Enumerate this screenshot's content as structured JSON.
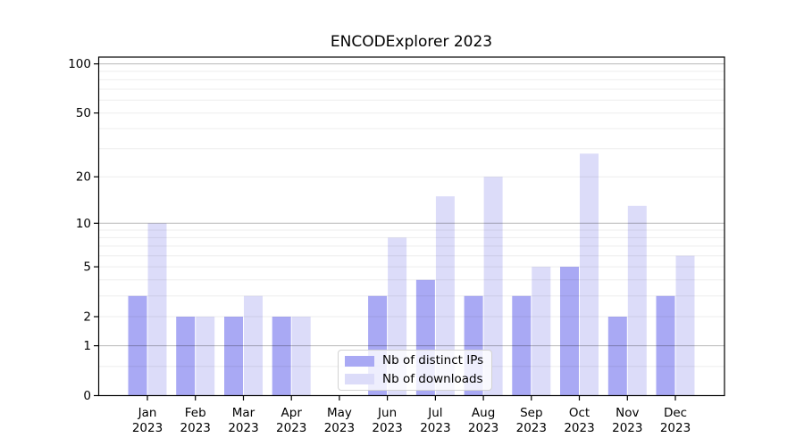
{
  "figure": {
    "title": "ENCODExplorer 2023",
    "background": "#ffffff"
  },
  "chart_data": {
    "type": "bar",
    "title": "ENCODExplorer 2023",
    "categories": [
      "Jan 2023",
      "Feb 2023",
      "Mar 2023",
      "Apr 2023",
      "May 2023",
      "Jun 2023",
      "Jul 2023",
      "Aug 2023",
      "Sep 2023",
      "Oct 2023",
      "Nov 2023",
      "Dec 2023"
    ],
    "series": [
      {
        "name": "Nb of distinct IPs",
        "color": "#a9a9f4",
        "values": [
          3,
          2,
          2,
          2,
          0,
          3,
          4,
          3,
          3,
          5,
          2,
          3
        ]
      },
      {
        "name": "Nb of downloads",
        "color": "#dcdcf9",
        "values": [
          10,
          2,
          3,
          2,
          0,
          8,
          15,
          20,
          5,
          28,
          13,
          6
        ]
      }
    ],
    "yscale": "log1p",
    "ylabel": "",
    "xlabel": "",
    "ylim": [
      0,
      110
    ],
    "yticks": [
      0,
      1,
      2,
      5,
      10,
      20,
      50,
      100
    ],
    "major_gridlines": [
      1,
      10,
      100
    ],
    "minor_gridlines": [
      0.5,
      2,
      3,
      4,
      5,
      6,
      7,
      8,
      9,
      20,
      30,
      40,
      50,
      60,
      70,
      80,
      90
    ],
    "grid": true,
    "legend_position": "lower center",
    "colors": {
      "axis": "#000000",
      "tick_label": "#000000",
      "grid_minor": "rgba(0,0,0,0.07)",
      "grid_major": "rgba(0,0,0,0.28)"
    }
  }
}
